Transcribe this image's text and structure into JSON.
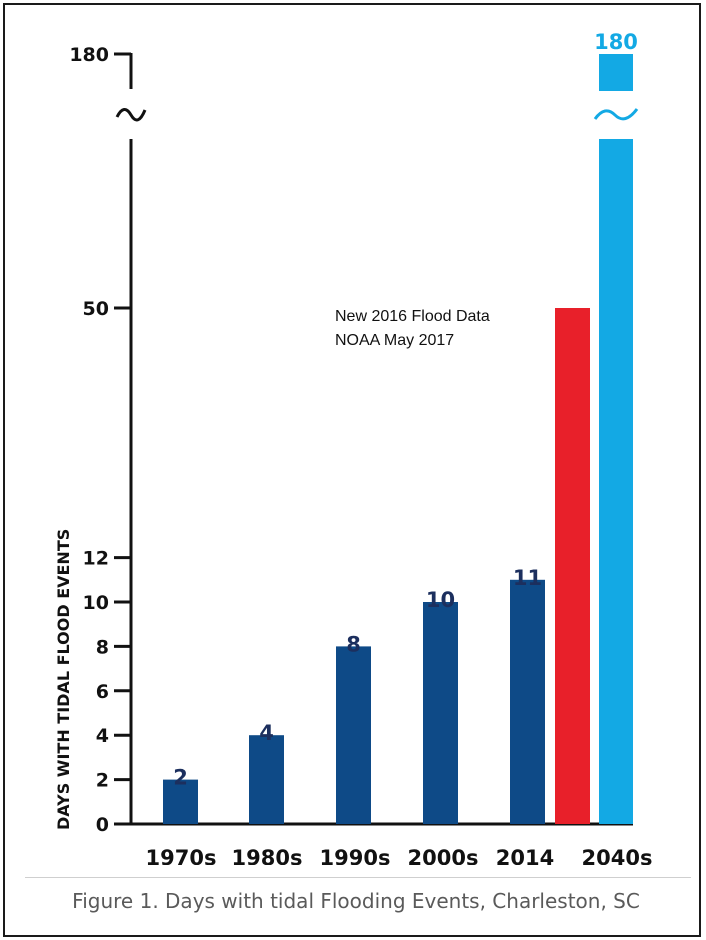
{
  "figure": {
    "caption": "Figure 1.  Days with tidal Flooding Events, Charleston, SC"
  },
  "chart_data": {
    "type": "bar",
    "ylabel": "DAYS WITH TIDAL FLOOD EVENTS",
    "xlabel": "",
    "categories": [
      "1970s",
      "1980s",
      "1990s",
      "2000s",
      "2014",
      "",
      "2040s"
    ],
    "values": [
      2,
      4,
      8,
      10,
      11,
      50,
      180
    ],
    "value_labels": [
      "2",
      "4",
      "8",
      "10",
      "11",
      "",
      "180"
    ],
    "bar_colors": [
      "#0e4a87",
      "#0e4a87",
      "#0e4a87",
      "#0e4a87",
      "#0e4a87",
      "#e8202a",
      "#13a9e4"
    ],
    "value_label_colors": [
      "#1c2f5e",
      "#1c2f5e",
      "#1c2f5e",
      "#1c2f5e",
      "#1c2f5e",
      "",
      "#13a9e4"
    ],
    "y_ticks": [
      0,
      2,
      4,
      6,
      8,
      10,
      12,
      50,
      180
    ],
    "y_tick_labels": [
      "0",
      "2",
      "4",
      "6",
      "8",
      "10",
      "12",
      "50",
      "180"
    ],
    "axis_break": true,
    "grid": false,
    "annotation": [
      "New 2016 Flood Data",
      "NOAA May 2017"
    ]
  }
}
